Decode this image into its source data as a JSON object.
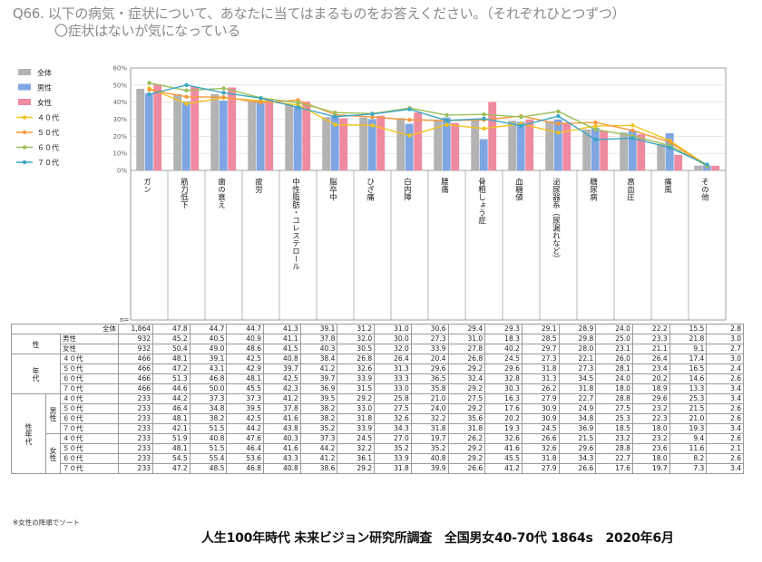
{
  "title": {
    "line1": "Q66. 以下の病気・症状について、あなたに当てはまるものをお答えください。（それぞれひとつずつ）",
    "line2": "〇症状はないが気になっている"
  },
  "colors": {
    "全体": "#b3b3b3",
    "男性": "#7fa6e3",
    "女性": "#f08aa0",
    "４０代": "#f2c31c",
    "５０代": "#f59a3c",
    "６０代": "#9cc05a",
    "７０代": "#3aa6c4"
  },
  "chart_data": {
    "type": "bar",
    "categories": [
      "ガン",
      "筋力低下",
      "歯の衰え",
      "疲労",
      "中性脂肪・コレステロール",
      "脳卒中",
      "ひざ痛",
      "白内障",
      "腰痛",
      "骨粗しょう症",
      "血糖値",
      "泌尿器系（尿漏れなど）",
      "糖尿病",
      "高血圧",
      "痛風",
      "その他"
    ],
    "ylim": [
      0,
      60
    ],
    "yticks": [
      "0%",
      "10%",
      "20%",
      "30%",
      "40%",
      "50%",
      "60%"
    ],
    "series": [
      {
        "name": "全体",
        "kind": "bar",
        "values": [
          47.8,
          44.7,
          44.7,
          41.3,
          39.1,
          31.2,
          31.0,
          30.6,
          29.4,
          29.3,
          29.1,
          28.9,
          24.0,
          22.2,
          15.5,
          2.8
        ]
      },
      {
        "name": "男性",
        "kind": "bar",
        "values": [
          45.2,
          40.5,
          40.9,
          41.1,
          37.8,
          32.0,
          30.0,
          27.3,
          31.0,
          18.3,
          28.5,
          29.8,
          25.0,
          23.3,
          21.8,
          3.0
        ]
      },
      {
        "name": "女性",
        "kind": "bar",
        "values": [
          50.4,
          49.0,
          48.6,
          41.5,
          40.3,
          30.5,
          32.0,
          33.9,
          27.8,
          40.2,
          29.7,
          28.0,
          23.1,
          21.1,
          9.1,
          2.7
        ]
      },
      {
        "name": "４０代",
        "kind": "line",
        "values": [
          48.1,
          39.1,
          42.5,
          40.8,
          38.4,
          26.8,
          26.4,
          20.4,
          26.8,
          24.5,
          27.3,
          22.1,
          26.0,
          26.4,
          17.4,
          3.0
        ]
      },
      {
        "name": "５０代",
        "kind": "line",
        "values": [
          47.2,
          43.1,
          42.9,
          39.7,
          41.2,
          32.6,
          31.3,
          29.6,
          29.2,
          29.6,
          31.8,
          27.3,
          28.1,
          23.4,
          16.5,
          2.4
        ]
      },
      {
        "name": "６０代",
        "kind": "line",
        "values": [
          51.3,
          46.8,
          48.1,
          42.5,
          39.7,
          33.9,
          33.3,
          36.5,
          32.4,
          32.8,
          31.3,
          34.5,
          24.0,
          20.2,
          14.6,
          2.6
        ]
      },
      {
        "name": "７０代",
        "kind": "line",
        "values": [
          44.6,
          50.0,
          45.5,
          42.3,
          36.9,
          31.5,
          33.0,
          35.8,
          29.2,
          30.3,
          26.2,
          31.8,
          18.0,
          18.9,
          13.3,
          3.4
        ]
      }
    ],
    "legend_position": "left"
  },
  "table": {
    "n_label": "n=",
    "rows": [
      {
        "g1": "",
        "g2": "",
        "label": "全体",
        "n": "1,864",
        "values": [
          "47.8",
          "44.7",
          "44.7",
          "41.3",
          "39.1",
          "31.2",
          "31.0",
          "30.6",
          "29.4",
          "29.3",
          "29.1",
          "28.9",
          "24.0",
          "22.2",
          "15.5",
          "2.8"
        ]
      },
      {
        "g1": "性",
        "g2": "",
        "label": "男性",
        "n": "932",
        "values": [
          "45.2",
          "40.5",
          "40.9",
          "41.1",
          "37.8",
          "32.0",
          "30.0",
          "27.3",
          "31.0",
          "18.3",
          "28.5",
          "29.8",
          "25.0",
          "23.3",
          "21.8",
          "3.0"
        ]
      },
      {
        "g1": "",
        "g2": "",
        "label": "女性",
        "n": "932",
        "values": [
          "50.4",
          "49.0",
          "48.6",
          "41.5",
          "40.3",
          "30.5",
          "32.0",
          "33.9",
          "27.8",
          "40.2",
          "29.7",
          "28.0",
          "23.1",
          "21.1",
          "9.1",
          "2.7"
        ]
      },
      {
        "g1": "年代",
        "g2": "",
        "label": "４０代",
        "n": "466",
        "values": [
          "48.1",
          "39.1",
          "42.5",
          "40.8",
          "38.4",
          "26.8",
          "26.4",
          "20.4",
          "26.8",
          "24.5",
          "27.3",
          "22.1",
          "26.0",
          "26.4",
          "17.4",
          "3.0"
        ]
      },
      {
        "g1": "",
        "g2": "",
        "label": "５０代",
        "n": "466",
        "values": [
          "47.2",
          "43.1",
          "42.9",
          "39.7",
          "41.2",
          "32.6",
          "31.3",
          "29.6",
          "29.2",
          "29.6",
          "31.8",
          "27.3",
          "28.1",
          "23.4",
          "16.5",
          "2.4"
        ]
      },
      {
        "g1": "",
        "g2": "",
        "label": "６０代",
        "n": "466",
        "values": [
          "51.3",
          "46.8",
          "48.1",
          "42.5",
          "39.7",
          "33.9",
          "33.3",
          "36.5",
          "32.4",
          "32.8",
          "31.3",
          "34.5",
          "24.0",
          "20.2",
          "14.6",
          "2.6"
        ]
      },
      {
        "g1": "",
        "g2": "",
        "label": "７０代",
        "n": "466",
        "values": [
          "44.6",
          "50.0",
          "45.5",
          "42.3",
          "36.9",
          "31.5",
          "33.0",
          "35.8",
          "29.2",
          "30.3",
          "26.2",
          "31.8",
          "18.0",
          "18.9",
          "13.3",
          "3.4"
        ]
      },
      {
        "g1": "性年代",
        "g2": "男性",
        "label": "４０代",
        "n": "233",
        "values": [
          "44.2",
          "37.3",
          "37.3",
          "41.2",
          "39.5",
          "29.2",
          "25.8",
          "21.0",
          "27.5",
          "16.3",
          "27.9",
          "22.7",
          "28.8",
          "29.6",
          "25.3",
          "3.4"
        ]
      },
      {
        "g1": "",
        "g2": "",
        "label": "５０代",
        "n": "233",
        "values": [
          "46.4",
          "34.8",
          "39.5",
          "37.8",
          "38.2",
          "33.0",
          "27.5",
          "24.0",
          "29.2",
          "17.6",
          "30.9",
          "24.9",
          "27.5",
          "23.2",
          "21.5",
          "2.6"
        ]
      },
      {
        "g1": "",
        "g2": "",
        "label": "６０代",
        "n": "233",
        "values": [
          "48.1",
          "38.2",
          "42.5",
          "41.6",
          "38.2",
          "31.8",
          "32.6",
          "32.2",
          "35.6",
          "20.2",
          "30.9",
          "34.8",
          "25.3",
          "22.3",
          "21.0",
          "2.6"
        ]
      },
      {
        "g1": "",
        "g2": "",
        "label": "７０代",
        "n": "233",
        "values": [
          "42.1",
          "51.5",
          "44.2",
          "43.8",
          "35.2",
          "33.9",
          "34.3",
          "31.8",
          "31.8",
          "19.3",
          "24.5",
          "36.9",
          "18.5",
          "18.0",
          "19.3",
          "3.4"
        ]
      },
      {
        "g1": "",
        "g2": "女性",
        "label": "４０代",
        "n": "233",
        "values": [
          "51.9",
          "40.8",
          "47.6",
          "40.3",
          "37.3",
          "24.5",
          "27.0",
          "19.7",
          "26.2",
          "32.6",
          "26.6",
          "21.5",
          "23.2",
          "23.2",
          "9.4",
          "2.6"
        ]
      },
      {
        "g1": "",
        "g2": "",
        "label": "５０代",
        "n": "233",
        "values": [
          "48.1",
          "51.5",
          "46.4",
          "41.6",
          "44.2",
          "32.2",
          "35.2",
          "35.2",
          "29.2",
          "41.6",
          "32.6",
          "29.6",
          "28.8",
          "23.6",
          "11.6",
          "2.1"
        ]
      },
      {
        "g1": "",
        "g2": "",
        "label": "６０代",
        "n": "233",
        "values": [
          "54.5",
          "55.4",
          "53.6",
          "43.3",
          "41.2",
          "36.1",
          "33.9",
          "40.8",
          "29.2",
          "45.5",
          "31.8",
          "34.3",
          "22.7",
          "18.0",
          "8.2",
          "2.6"
        ]
      },
      {
        "g1": "",
        "g2": "",
        "label": "７０代",
        "n": "233",
        "values": [
          "47.2",
          "48.5",
          "46.8",
          "40.8",
          "38.6",
          "29.2",
          "31.8",
          "39.9",
          "26.6",
          "41.2",
          "27.9",
          "26.6",
          "17.6",
          "19.7",
          "7.3",
          "3.4"
        ]
      }
    ]
  },
  "note": "※女性の降順でソート",
  "footer": "人生100年時代 未来ビジョン研究所調査　全国男女40-70代 1864s　2020年6月"
}
